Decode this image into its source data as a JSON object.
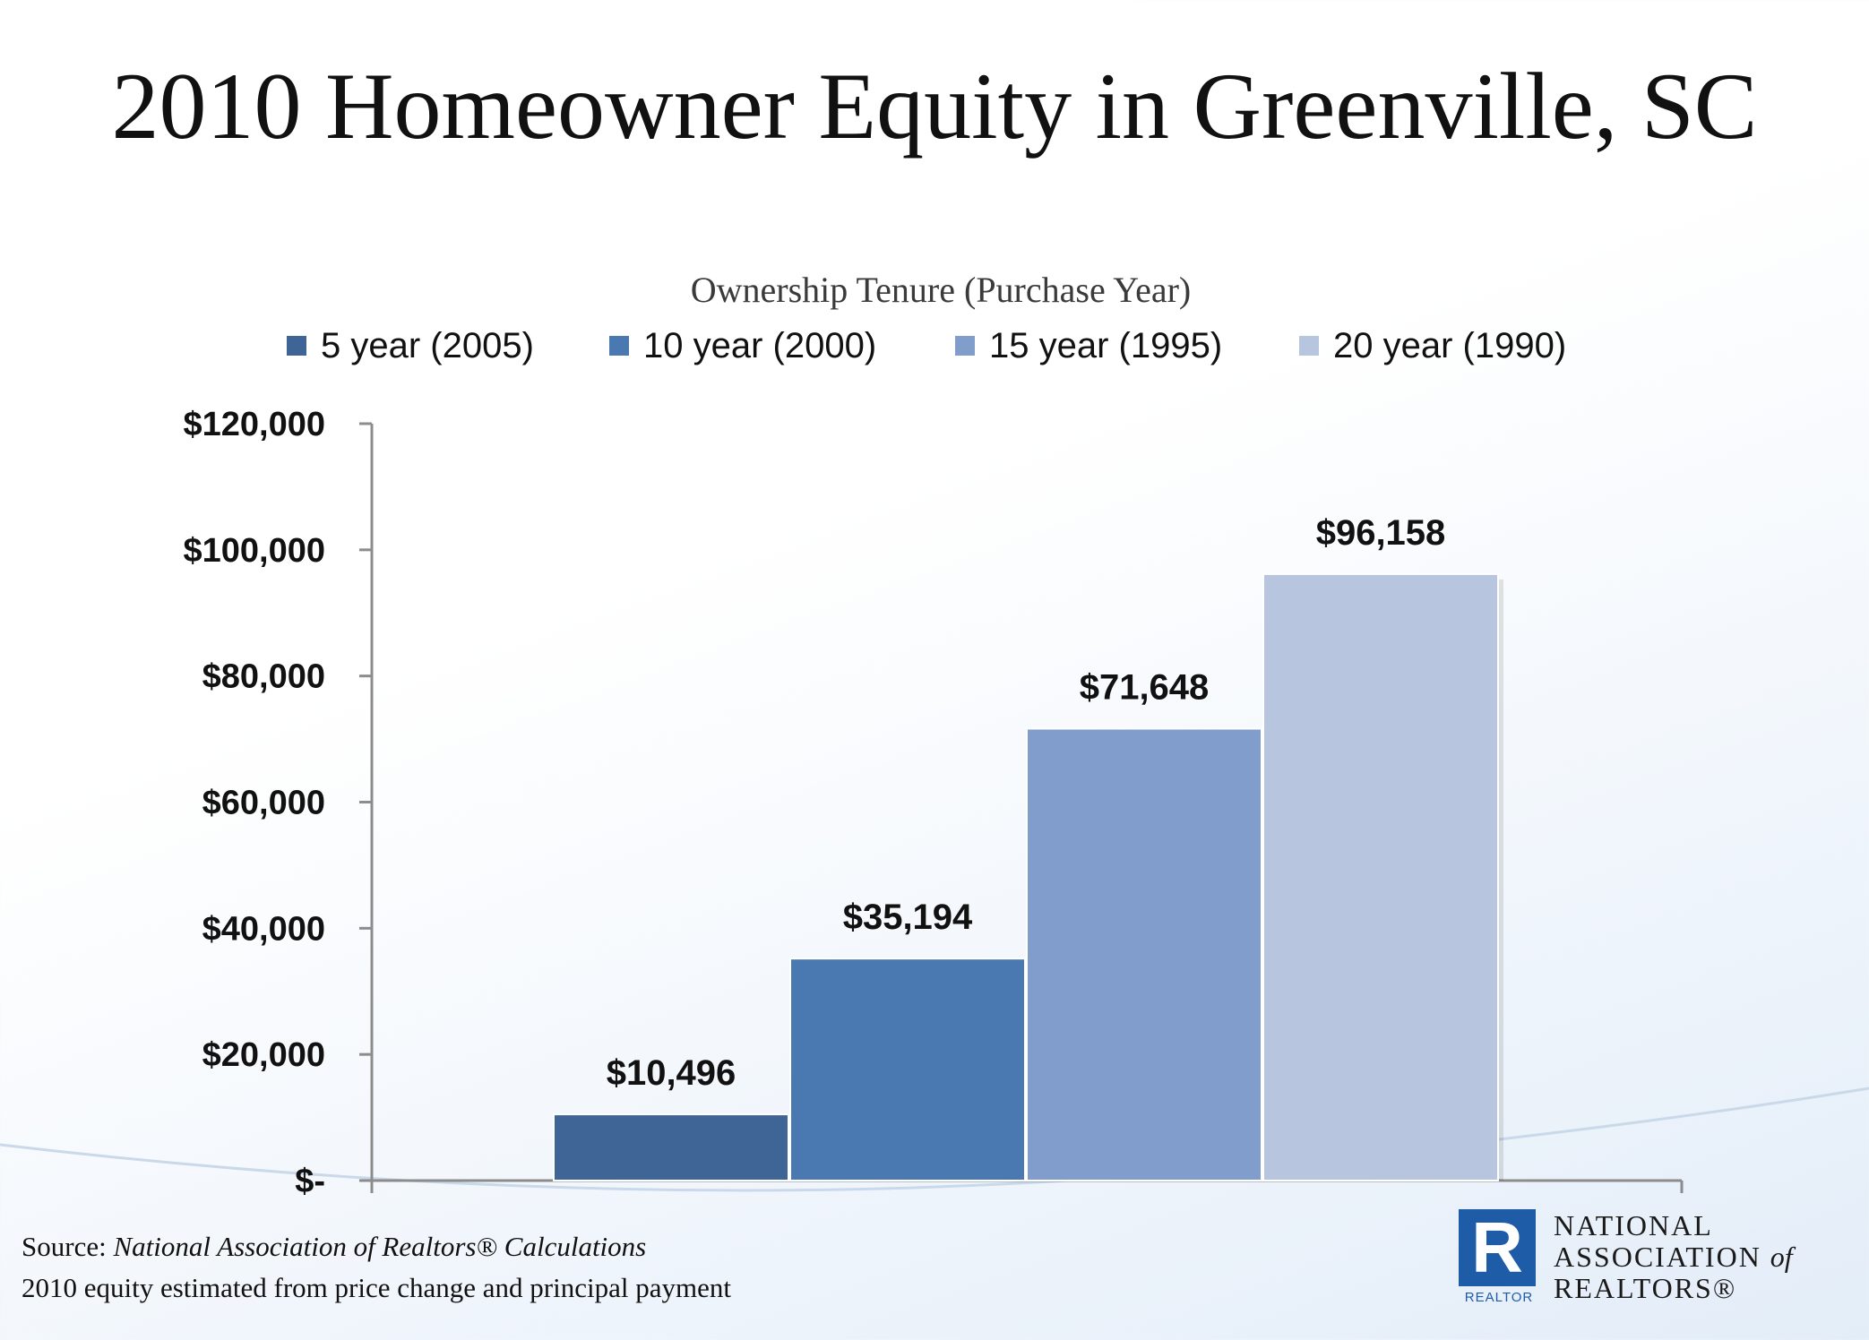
{
  "title": "2010 Homeowner Equity in Greenville, SC",
  "chart_data": {
    "type": "bar",
    "title": "2010 Homeowner Equity in Greenville, SC",
    "legend_title": "Ownership Tenure (Purchase Year)",
    "legend_position": "top",
    "grid": false,
    "xlabel": "",
    "ylabel": "",
    "ylim": [
      0,
      120000
    ],
    "y_ticks": [
      0,
      20000,
      40000,
      60000,
      80000,
      100000,
      120000
    ],
    "y_tick_labels": [
      "$-",
      "$20,000",
      "$40,000",
      "$60,000",
      "$80,000",
      "$100,000",
      "$120,000"
    ],
    "series": [
      {
        "name": "5 year (2005)",
        "value": 10496,
        "label": "$10,496",
        "color": "#3e6596"
      },
      {
        "name": "10 year (2000)",
        "value": 35194,
        "label": "$35,194",
        "color": "#4a79b1"
      },
      {
        "name": "15 year (1995)",
        "value": 71648,
        "label": "$71,648",
        "color": "#819dcb"
      },
      {
        "name": "20 year (1990)",
        "value": 96158,
        "label": "$96,158",
        "color": "#b7c6de"
      }
    ]
  },
  "source": {
    "prefix": "Source: ",
    "name": "National Association of Realtors® Calculations",
    "note": "2010 equity estimated from price change and principal payment"
  },
  "logo": {
    "mark": "R",
    "mark_caption": "REALTOR",
    "line1": "NATIONAL",
    "line2": "ASSOCIATION",
    "line2_suffix": "of",
    "line3": "REALTORS®"
  }
}
